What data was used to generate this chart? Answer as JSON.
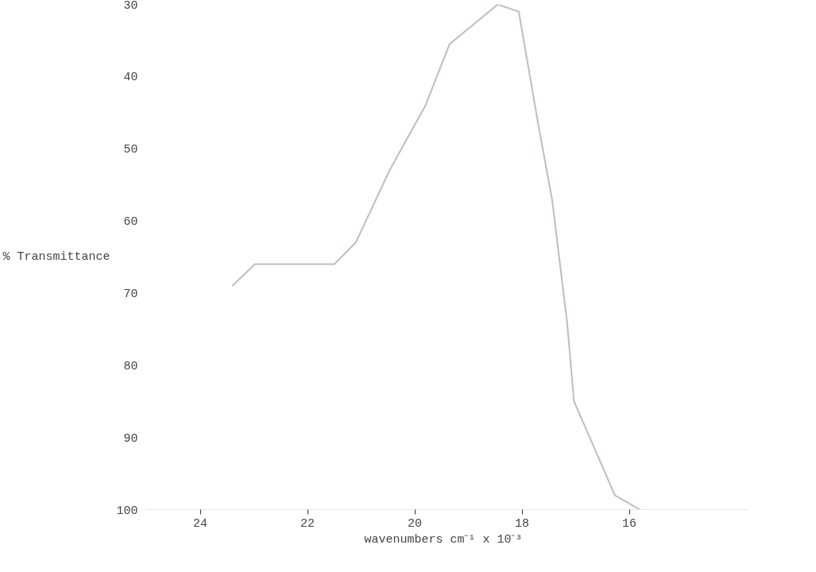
{
  "chart_data": {
    "type": "line",
    "xlabel": "wavenumbers  cm⁻¹ x 10⁻³",
    "ylabel": "% Transmittance",
    "x": [
      23.4,
      22.98,
      22.35,
      21.5,
      21.1,
      20.47,
      19.8,
      19.35,
      18.45,
      18.06,
      17.7,
      17.44,
      17.16,
      17.03,
      16.27,
      15.8
    ],
    "series": [
      {
        "color": "#c4b8c4",
        "values": [
          69,
          66,
          66,
          66,
          63,
          53,
          44,
          35.5,
          30,
          31,
          46.5,
          57,
          74,
          85,
          98,
          100
        ]
      }
    ],
    "xlim": [
      25,
      13.8
    ],
    "xticks": [
      24,
      22,
      20,
      18,
      16
    ],
    "ylim": [
      100,
      30
    ],
    "yticks": [
      30,
      40,
      50,
      60,
      70,
      80,
      90,
      100
    ],
    "grid": false,
    "marker": "none",
    "line_style": "solid"
  }
}
